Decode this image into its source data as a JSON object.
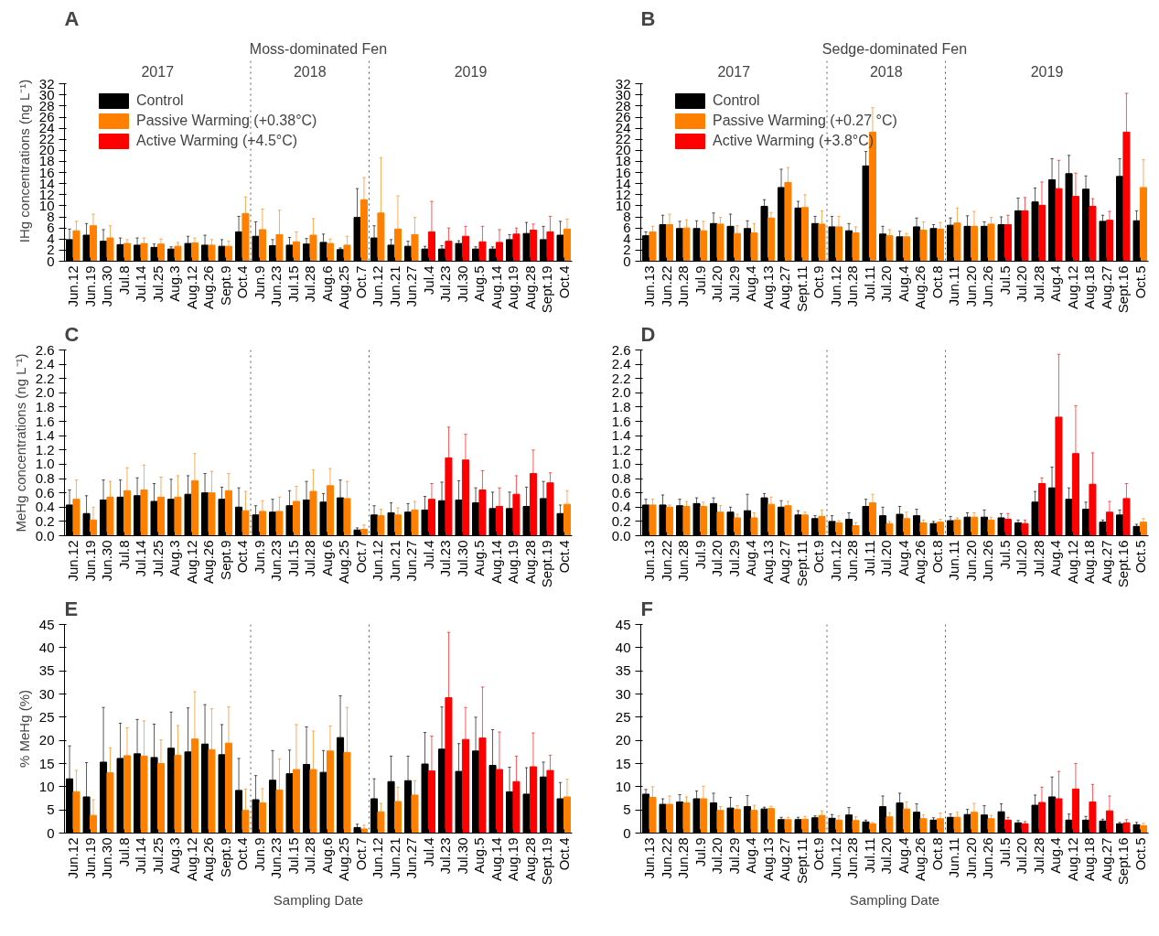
{
  "chart_data": [
    {
      "type": "bar",
      "title": "A",
      "subtitle": "Moss-dominated Fen",
      "ylabel": "IHg concentrations (ng L⁻¹)",
      "legend": "top left",
      "categories": [
        "Jun.12",
        "Jun.19",
        "Jun.30",
        "Jul.8",
        "Jul.14",
        "Jul.25",
        "Aug.3",
        "Aug.12",
        "Aug.26",
        "Sept.9",
        "Oct.4",
        "Jun.9",
        "Jun.23",
        "Jul.15",
        "Jul.28",
        "Aug.6",
        "Aug.25",
        "Oct.7",
        "Jun.12",
        "Jun.21",
        "Jun.27",
        "Jul.4",
        "Jul.23",
        "Jul.30",
        "Aug.5",
        "Aug.14",
        "Aug.19",
        "Aug.28",
        "Sept.19",
        "Oct.4"
      ],
      "ylim": [
        0,
        32
      ],
      "yticks": [
        0,
        2,
        4,
        6,
        8,
        10,
        12,
        14,
        16,
        18,
        20,
        22,
        24,
        26,
        28,
        30,
        32
      ],
      "annotations": [
        "2017",
        "2018",
        "2019"
      ],
      "series": [
        {
          "name": "Control",
          "color": "#000000",
          "values": [
            3.9,
            4.7,
            3.6,
            3.0,
            2.9,
            2.5,
            2.2,
            3.2,
            2.9,
            2.7,
            5.3,
            4.5,
            2.8,
            2.9,
            3.1,
            3.4,
            2.1,
            7.9,
            4.2,
            2.9,
            2.7,
            2.2,
            2.2,
            3.2,
            2.2,
            2.2,
            3.9,
            5.0,
            3.9,
            4.7
          ],
          "errors": [
            1.9,
            2.1,
            2.1,
            1.2,
            1.3,
            0.6,
            0.4,
            1.3,
            1.8,
            1.2,
            2.8,
            2.6,
            1.1,
            1.4,
            1.0,
            1.5,
            0.3,
            5.2,
            2.2,
            1.0,
            0.9,
            0.5,
            0.6,
            0.5,
            0.4,
            0.4,
            0.9,
            2.0,
            2.4,
            2.5
          ]
        },
        {
          "name": "Passive Warming (+0.38°C)",
          "color": "#ff8000",
          "values": [
            5.5,
            6.4,
            4.2,
            3.2,
            3.2,
            3.1,
            2.7,
            3.3,
            2.9,
            2.7,
            8.6,
            5.7,
            4.8,
            3.5,
            4.7,
            3.2,
            2.9,
            11.1,
            8.7,
            5.8,
            4.8,
            null,
            null,
            null,
            null,
            null,
            null,
            null,
            null,
            5.8
          ],
          "errors": [
            1.7,
            2.1,
            2.2,
            0.7,
            1.0,
            0.9,
            0.7,
            0.9,
            1.0,
            0.9,
            3.0,
            3.7,
            4.4,
            1.8,
            3.0,
            0.8,
            1.6,
            4.0,
            10.0,
            6.0,
            3.1,
            null,
            null,
            null,
            null,
            null,
            null,
            null,
            null,
            1.8
          ]
        },
        {
          "name": "Active Warming (+4.5°C)",
          "color": "#ff0000",
          "values": [
            null,
            null,
            null,
            null,
            null,
            null,
            null,
            null,
            null,
            null,
            null,
            null,
            null,
            null,
            null,
            null,
            null,
            null,
            null,
            null,
            null,
            5.3,
            3.6,
            4.5,
            3.5,
            3.4,
            4.9,
            5.6,
            5.3,
            null
          ],
          "errors": [
            null,
            null,
            null,
            null,
            null,
            null,
            null,
            null,
            null,
            null,
            null,
            null,
            null,
            null,
            null,
            null,
            null,
            null,
            null,
            null,
            null,
            5.5,
            2.4,
            1.8,
            2.8,
            2.3,
            1.1,
            1.1,
            2.8,
            null
          ]
        }
      ]
    },
    {
      "type": "bar",
      "title": "B",
      "subtitle": "Sedge-dominated Fen",
      "legend": "top left",
      "categories": [
        "Jun.13",
        "Jun.22",
        "Jun.28",
        "Jul.9",
        "Jul.20",
        "Jul.29",
        "Aug.4",
        "Aug.13",
        "Aug.27",
        "Sept.11",
        "Oct.9",
        "Jun.12",
        "Jun.28",
        "Jul.11",
        "Jul.20",
        "Aug.4",
        "Aug.26",
        "Oct.8",
        "Jun.11",
        "Jun.20",
        "Jun.26",
        "Jul.5",
        "Jul.20",
        "Jul.28",
        "Aug.4",
        "Aug.12",
        "Aug.18",
        "Aug.27",
        "Sept.16",
        "Oct.5"
      ],
      "ylim": [
        0,
        32
      ],
      "yticks": [
        0,
        2,
        4,
        6,
        8,
        10,
        12,
        14,
        16,
        18,
        20,
        22,
        24,
        26,
        28,
        30,
        32
      ],
      "annotations": [
        "2017",
        "2018",
        "2019"
      ],
      "series": [
        {
          "name": "Control",
          "color": "#000000",
          "values": [
            4.6,
            6.6,
            5.9,
            5.9,
            6.8,
            6.3,
            5.9,
            9.9,
            13.3,
            9.6,
            6.8,
            6.2,
            5.5,
            17.2,
            4.9,
            4.4,
            6.2,
            5.9,
            6.5,
            6.3,
            6.3,
            6.6,
            9.1,
            10.7,
            14.7,
            15.8,
            13.0,
            7.2,
            15.3,
            7.3
          ],
          "errors": [
            0.7,
            1.7,
            1.3,
            1.4,
            1.9,
            2.2,
            1.4,
            1.2,
            3.3,
            1.2,
            1.3,
            1.9,
            1.3,
            2.6,
            1.4,
            1.0,
            1.6,
            0.7,
            1.3,
            1.9,
            0.8,
            1.4,
            2.3,
            2.5,
            3.8,
            3.3,
            2.4,
            1.1,
            3.2,
            1.8
          ]
        },
        {
          "name": "Passive Warming (+0.27 °C)",
          "color": "#ff8000",
          "values": [
            5.3,
            6.6,
            6.0,
            5.5,
            6.7,
            5.0,
            5.1,
            7.8,
            14.2,
            9.7,
            6.7,
            6.2,
            5.1,
            23.3,
            4.6,
            4.4,
            5.6,
            5.8,
            6.9,
            6.3,
            6.7,
            null,
            null,
            null,
            null,
            null,
            null,
            null,
            null,
            13.3
          ],
          "errors": [
            1.0,
            1.9,
            1.5,
            1.7,
            1.2,
            1.4,
            1.7,
            1.0,
            2.7,
            2.3,
            2.4,
            1.9,
            1.1,
            4.4,
            1.1,
            0.6,
            1.5,
            1.2,
            2.7,
            2.7,
            1.2,
            null,
            null,
            null,
            null,
            null,
            null,
            null,
            null,
            5.0
          ]
        },
        {
          "name": "Active Warming (+3.8°C)",
          "color": "#ff0000",
          "values": [
            null,
            null,
            null,
            null,
            null,
            null,
            null,
            null,
            null,
            null,
            null,
            null,
            null,
            null,
            null,
            null,
            null,
            null,
            null,
            null,
            null,
            6.6,
            9.1,
            10.1,
            13.1,
            11.7,
            9.9,
            7.4,
            23.3,
            null
          ],
          "errors": [
            null,
            null,
            null,
            null,
            null,
            null,
            null,
            null,
            null,
            null,
            null,
            null,
            null,
            null,
            null,
            null,
            null,
            null,
            null,
            null,
            null,
            1.7,
            2.4,
            4.2,
            5.1,
            4.2,
            1.4,
            1.6,
            7.0,
            null
          ]
        }
      ]
    },
    {
      "type": "bar",
      "title": "C",
      "ylabel": "MeHg concentrations (ng L⁻¹)",
      "categories": [
        "Jun.12",
        "Jun.19",
        "Jun.30",
        "Jul.8",
        "Jul.14",
        "Jul.25",
        "Aug.3",
        "Aug.12",
        "Aug.26",
        "Sept.9",
        "Oct.4",
        "Jun.9",
        "Jun.23",
        "Jul.15",
        "Jul.28",
        "Aug.6",
        "Aug.25",
        "Oct.7",
        "Jun.12",
        "Jun.21",
        "Jun.27",
        "Jul.4",
        "Jul.23",
        "Jul.30",
        "Aug.5",
        "Aug.14",
        "Aug.19",
        "Aug.28",
        "Sept.19",
        "Oct.4"
      ],
      "ylim": [
        0,
        2.6
      ],
      "yticks": [
        {
          "value": 0,
          "label": "0.0"
        },
        0.2,
        0.4,
        0.6,
        0.8,
        {
          "value": 1,
          "label": "1.0"
        },
        1.2,
        1.4,
        1.6,
        1.8,
        {
          "value": 2,
          "label": "2.0"
        },
        2.2,
        2.4,
        2.6
      ],
      "series": [
        {
          "color": "#000000",
          "values": [
            0.43,
            0.31,
            0.5,
            0.54,
            0.56,
            0.48,
            0.51,
            0.58,
            0.6,
            0.51,
            0.4,
            0.29,
            0.33,
            0.42,
            0.5,
            0.47,
            0.53,
            0.08,
            0.29,
            0.32,
            0.33,
            0.36,
            0.49,
            0.5,
            0.46,
            0.38,
            0.38,
            0.41,
            0.52,
            0.31
          ],
          "errors": [
            0.21,
            0.25,
            0.28,
            0.24,
            0.25,
            0.25,
            0.28,
            0.26,
            0.27,
            0.17,
            0.27,
            0.13,
            0.18,
            0.21,
            0.26,
            0.12,
            0.25,
            0.03,
            0.13,
            0.14,
            0.12,
            0.19,
            0.26,
            0.27,
            0.21,
            0.23,
            0.23,
            0.27,
            0.24,
            0.12
          ]
        },
        {
          "color": "#ff8000",
          "values": [
            0.51,
            0.22,
            0.54,
            0.63,
            0.64,
            0.54,
            0.54,
            0.77,
            0.6,
            0.63,
            0.35,
            0.34,
            0.34,
            0.48,
            0.62,
            0.7,
            0.52,
            0.09,
            0.28,
            0.29,
            0.36,
            null,
            null,
            null,
            null,
            null,
            null,
            null,
            null,
            0.44
          ],
          "errors": [
            0.27,
            0.18,
            0.22,
            0.32,
            0.35,
            0.28,
            0.3,
            0.38,
            0.3,
            0.24,
            0.27,
            0.15,
            0.2,
            0.21,
            0.3,
            0.24,
            0.24,
            0.06,
            0.09,
            0.1,
            0.12,
            null,
            null,
            null,
            null,
            null,
            null,
            null,
            null,
            0.19
          ]
        },
        {
          "color": "#ff0000",
          "values": [
            null,
            null,
            null,
            null,
            null,
            null,
            null,
            null,
            null,
            null,
            null,
            null,
            null,
            null,
            null,
            null,
            null,
            null,
            null,
            null,
            null,
            0.51,
            1.09,
            1.06,
            0.64,
            0.41,
            0.58,
            0.87,
            0.74,
            null
          ],
          "errors": [
            null,
            null,
            null,
            null,
            null,
            null,
            null,
            null,
            null,
            null,
            null,
            null,
            null,
            null,
            null,
            null,
            null,
            null,
            null,
            null,
            null,
            0.22,
            0.43,
            0.36,
            0.27,
            0.26,
            0.26,
            0.33,
            0.14,
            null
          ]
        }
      ]
    },
    {
      "type": "bar",
      "title": "D",
      "categories": [
        "Jun.13",
        "Jun.22",
        "Jun.28",
        "Jul.9",
        "Jul.20",
        "Jul.29",
        "Aug.4",
        "Aug.13",
        "Aug.27",
        "Sept.11",
        "Oct.9",
        "Jun.12",
        "Jun.28",
        "Jul.11",
        "Jul.20",
        "Aug.4",
        "Aug.26",
        "Oct.8",
        "Jun.11",
        "Jun.20",
        "Jun.26",
        "Jul.5",
        "Jul.20",
        "Jul.28",
        "Aug.4",
        "Aug.12",
        "Aug.18",
        "Aug.27",
        "Sept.16",
        "Oct.5"
      ],
      "ylim": [
        0,
        2.6
      ],
      "yticks": [
        {
          "value": 0,
          "label": "0.0"
        },
        0.2,
        0.4,
        0.6,
        0.8,
        {
          "value": 1,
          "label": "1.0"
        },
        1.2,
        1.4,
        1.6,
        1.8,
        {
          "value": 2,
          "label": "2.0"
        },
        2.2,
        2.4,
        2.6
      ],
      "series": [
        {
          "color": "#000000",
          "values": [
            0.43,
            0.43,
            0.42,
            0.45,
            0.45,
            0.33,
            0.35,
            0.53,
            0.4,
            0.29,
            0.24,
            0.2,
            0.23,
            0.41,
            0.28,
            0.3,
            0.28,
            0.17,
            0.21,
            0.26,
            0.26,
            0.25,
            0.18,
            0.47,
            0.67,
            0.51,
            0.37,
            0.19,
            0.29,
            0.13
          ],
          "errors": [
            0.08,
            0.14,
            0.09,
            0.08,
            0.08,
            0.07,
            0.23,
            0.06,
            0.09,
            0.06,
            0.04,
            0.08,
            0.09,
            0.1,
            0.12,
            0.11,
            0.09,
            0.03,
            0.06,
            0.06,
            0.1,
            0.06,
            0.04,
            0.15,
            0.29,
            0.16,
            0.1,
            0.03,
            0.07,
            0.03
          ]
        },
        {
          "color": "#ff8000",
          "values": [
            0.43,
            0.4,
            0.41,
            0.41,
            0.33,
            0.25,
            0.25,
            0.44,
            0.42,
            0.29,
            0.27,
            0.18,
            0.14,
            0.46,
            0.17,
            0.24,
            0.18,
            0.19,
            0.22,
            0.26,
            0.22,
            null,
            null,
            null,
            null,
            null,
            null,
            null,
            null,
            0.19
          ],
          "errors": [
            0.08,
            0.03,
            0.07,
            0.06,
            0.09,
            0.05,
            0.07,
            0.1,
            0.06,
            0.04,
            0.09,
            0.03,
            0.04,
            0.12,
            0.03,
            0.09,
            0.04,
            0.04,
            0.03,
            0.06,
            0.04,
            null,
            null,
            null,
            null,
            null,
            null,
            null,
            null,
            0.05
          ]
        },
        {
          "color": "#ff0000",
          "values": [
            null,
            null,
            null,
            null,
            null,
            null,
            null,
            null,
            null,
            null,
            null,
            null,
            null,
            null,
            null,
            null,
            null,
            null,
            null,
            null,
            null,
            0.23,
            0.17,
            0.73,
            1.66,
            1.15,
            0.72,
            0.33,
            0.52,
            null
          ],
          "errors": [
            null,
            null,
            null,
            null,
            null,
            null,
            null,
            null,
            null,
            null,
            null,
            null,
            null,
            null,
            null,
            null,
            null,
            null,
            null,
            null,
            null,
            0.08,
            0.05,
            0.08,
            0.88,
            0.67,
            0.44,
            0.15,
            0.21,
            null
          ]
        }
      ]
    },
    {
      "type": "bar",
      "title": "E",
      "ylabel": "% MeHg (%)",
      "xlabel": "Sampling Date",
      "categories": [
        "Jun.12",
        "Jun.19",
        "Jun.30",
        "Jul.8",
        "Jul.14",
        "Jul.25",
        "Aug.3",
        "Aug.12",
        "Aug.26",
        "Sept.9",
        "Oct.4",
        "Jun.9",
        "Jun.23",
        "Jul.15",
        "Jul.28",
        "Aug.6",
        "Aug.25",
        "Oct.7",
        "Jun.12",
        "Jun.21",
        "Jun.27",
        "Jul.4",
        "Jul.23",
        "Jul.30",
        "Aug.5",
        "Aug.14",
        "Aug.19",
        "Aug.28",
        "Sept.19",
        "Oct.4"
      ],
      "ylim": [
        0,
        45
      ],
      "yticks": [
        0,
        5,
        10,
        15,
        20,
        25,
        30,
        35,
        40,
        45
      ],
      "series": [
        {
          "color": "#000000",
          "values": [
            11.7,
            7.8,
            15.3,
            16.1,
            17.1,
            16.3,
            18.3,
            17.5,
            19.2,
            16.9,
            9.2,
            7.2,
            11.4,
            12.8,
            14.8,
            13.1,
            20.6,
            1.2,
            7.4,
            11.1,
            11.3,
            14.9,
            18.1,
            13.3,
            17.7,
            14.6,
            8.9,
            8.4,
            12.1,
            7.4
          ],
          "errors": [
            7.1,
            7.4,
            11.8,
            7.6,
            7.4,
            7.2,
            7.8,
            9.5,
            8.5,
            6.5,
            6.9,
            5.2,
            6.4,
            5.1,
            8.1,
            4.7,
            9.0,
            0.7,
            4.3,
            5.5,
            5.3,
            6.8,
            9.1,
            6.0,
            7.3,
            7.7,
            5.3,
            5.7,
            3.2,
            3.5
          ]
        },
        {
          "color": "#ff8000",
          "values": [
            8.9,
            3.8,
            13.0,
            16.7,
            16.6,
            15.0,
            16.8,
            20.3,
            18.0,
            19.4,
            4.9,
            6.5,
            9.3,
            13.7,
            13.7,
            17.7,
            17.4,
            0.9,
            4.6,
            6.8,
            8.2,
            null,
            null,
            null,
            null,
            null,
            null,
            null,
            null,
            7.8
          ],
          "errors": [
            4.6,
            3.4,
            5.4,
            6.0,
            7.6,
            5.1,
            6.4,
            10.2,
            8.8,
            7.8,
            4.6,
            3.1,
            6.7,
            9.7,
            8.3,
            5.4,
            9.7,
            0.8,
            1.8,
            3.1,
            3.1,
            null,
            null,
            null,
            null,
            null,
            null,
            null,
            null,
            3.8
          ]
        },
        {
          "color": "#ff0000",
          "values": [
            null,
            null,
            null,
            null,
            null,
            null,
            null,
            null,
            null,
            null,
            null,
            null,
            null,
            null,
            null,
            null,
            null,
            null,
            null,
            null,
            null,
            13.4,
            29.2,
            20.2,
            20.5,
            13.7,
            11.1,
            14.3,
            13.5,
            null
          ],
          "errors": [
            null,
            null,
            null,
            null,
            null,
            null,
            null,
            null,
            null,
            null,
            null,
            null,
            null,
            null,
            null,
            null,
            null,
            null,
            null,
            null,
            null,
            7.5,
            14.1,
            6.9,
            11.0,
            8.1,
            5.5,
            7.3,
            3.3,
            null
          ]
        }
      ]
    },
    {
      "type": "bar",
      "title": "F",
      "xlabel": "Sampling Date",
      "categories": [
        "Jun.13",
        "Jun.22",
        "Jun.28",
        "Jul.9",
        "Jul.20",
        "Jul.29",
        "Aug.4",
        "Aug.13",
        "Aug.27",
        "Sept.11",
        "Oct.9",
        "Jun.12",
        "Jun.28",
        "Jul.11",
        "Jul.20",
        "Aug.4",
        "Aug.26",
        "Oct.8",
        "Jun.11",
        "Jun.20",
        "Jun.26",
        "Jul.5",
        "Jul.20",
        "Jul.28",
        "Aug.4",
        "Aug.12",
        "Aug.18",
        "Aug.27",
        "Sept.16",
        "Oct.5"
      ],
      "ylim": [
        0,
        45
      ],
      "yticks": [
        0,
        5,
        10,
        15,
        20,
        25,
        30,
        35,
        40,
        45
      ],
      "series": [
        {
          "color": "#000000",
          "values": [
            8.4,
            6.2,
            6.7,
            7.4,
            6.5,
            5.4,
            5.7,
            5.2,
            2.9,
            2.9,
            3.3,
            3.2,
            3.9,
            2.4,
            5.7,
            6.5,
            4.5,
            2.8,
            3.4,
            4.0,
            3.9,
            4.6,
            2.2,
            6.0,
            7.8,
            2.8,
            2.8,
            2.6,
            2.0,
            1.8
          ],
          "errors": [
            1.0,
            1.2,
            1.6,
            1.7,
            2.1,
            2.3,
            2.4,
            0.4,
            0.5,
            0.5,
            0.4,
            0.8,
            1.6,
            0.4,
            2.3,
            2.1,
            1.8,
            0.5,
            0.7,
            1.1,
            2.0,
            1.7,
            0.5,
            2.2,
            4.3,
            1.3,
            0.8,
            0.4,
            0.3,
            0.5
          ]
        },
        {
          "color": "#ff8000",
          "values": [
            7.7,
            6.2,
            6.5,
            7.4,
            4.9,
            5.1,
            4.9,
            5.3,
            2.9,
            3.0,
            3.8,
            2.8,
            2.7,
            2.0,
            3.5,
            5.2,
            3.1,
            3.1,
            3.4,
            4.5,
            3.1,
            null,
            null,
            null,
            null,
            null,
            null,
            null,
            null,
            1.6
          ],
          "errors": [
            2.3,
            1.8,
            1.3,
            2.7,
            0.8,
            0.8,
            1.1,
            0.5,
            0.5,
            0.6,
            1.0,
            0.9,
            0.8,
            0.3,
            0.9,
            1.5,
            0.8,
            1.2,
            1.1,
            1.9,
            0.7,
            null,
            null,
            null,
            null,
            null,
            null,
            null,
            null,
            0.5
          ]
        },
        {
          "color": "#ff0000",
          "values": [
            null,
            null,
            null,
            null,
            null,
            null,
            null,
            null,
            null,
            null,
            null,
            null,
            null,
            null,
            null,
            null,
            null,
            null,
            null,
            null,
            null,
            2.8,
            2.0,
            6.6,
            7.4,
            9.5,
            6.7,
            4.8,
            2.2,
            null
          ],
          "errors": [
            null,
            null,
            null,
            null,
            null,
            null,
            null,
            null,
            null,
            null,
            null,
            null,
            null,
            null,
            null,
            null,
            null,
            null,
            null,
            null,
            null,
            0.6,
            0.5,
            3.3,
            5.9,
            5.5,
            3.8,
            3.2,
            0.7,
            null
          ]
        }
      ]
    }
  ]
}
